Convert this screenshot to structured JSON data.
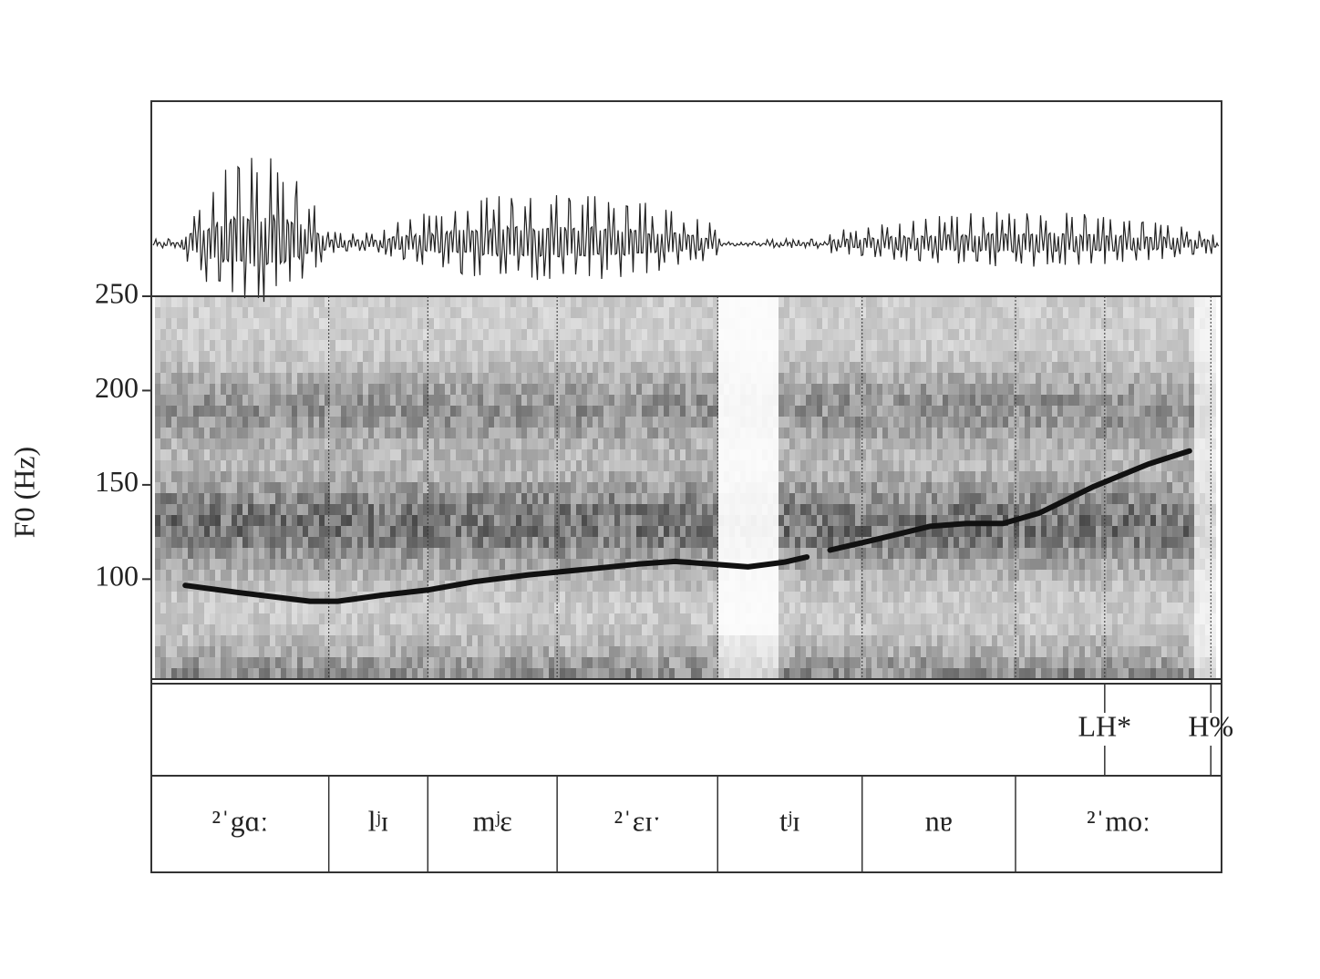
{
  "chart_data": {
    "type": "line",
    "ylabel": "F0 (Hz)",
    "ylim": [
      47,
      250
    ],
    "yticks": [
      100,
      150,
      200,
      250
    ],
    "xlim": [
      0,
      1.2
    ],
    "x": [
      0.038,
      0.096,
      0.178,
      0.209,
      0.259,
      0.311,
      0.362,
      0.423,
      0.495,
      0.546,
      0.587,
      0.628,
      0.669,
      0.71,
      0.735,
      0.748,
      0.761,
      0.812,
      0.873,
      0.914,
      0.955,
      0.996,
      1.057,
      1.118,
      1.164
    ],
    "series": [
      {
        "color": "#111111",
        "values": [
          96.7,
          93,
          88.3,
          88.3,
          91.5,
          94.3,
          98.6,
          102.3,
          105.6,
          108,
          109.4,
          108,
          106.5,
          109,
          111.7,
          null,
          115.4,
          121,
          128,
          129.5,
          129.5,
          135.1,
          149.2,
          161,
          168
        ]
      }
    ],
    "tones": {
      "labels": [
        "LH*",
        "H%"
      ],
      "times": [
        1.069,
        1.188
      ]
    },
    "segments": {
      "labels": [
        "²ˈgɑː",
        "lʲɪ",
        "mʲɛ",
        "²ˈɛɪˑ",
        "tʲɪ",
        "nɐ",
        "²ˈmoː"
      ],
      "boundaries": [
        0.199,
        0.31,
        0.455,
        0.635,
        0.797,
        0.969
      ]
    }
  }
}
